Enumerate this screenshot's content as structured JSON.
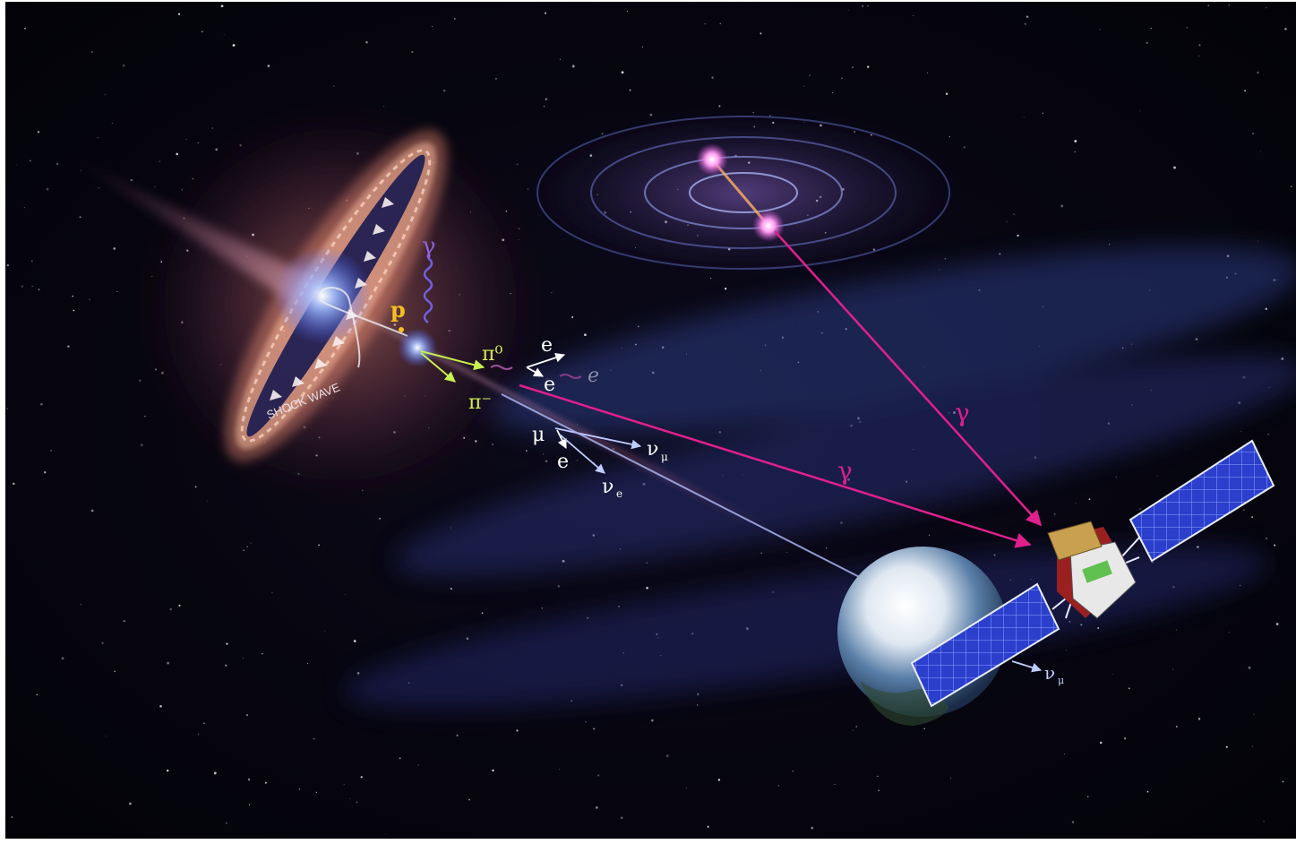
{
  "labels": {
    "gamma_source": "γ",
    "proton": "p",
    "pi0": "π⁰",
    "pi_minus": "π⁻",
    "e_upper": "e",
    "e_lower": "e",
    "e_far": "e",
    "muon": "μ",
    "e_muon": "e",
    "nu_mu": "ν",
    "nu_mu_sub": "μ",
    "nu_e": "ν",
    "nu_e_sub": "e",
    "gamma_path_1": "γ",
    "gamma_path_2": "γ",
    "nu_earth": "ν",
    "nu_earth_sub": "μ",
    "shock_wave": "SHOCK WAVE"
  },
  "colors": {
    "space": "#05050c",
    "gamma_arrow": "#e0208c",
    "neutrino_arrow": "#b8c4ff",
    "proton_label": "#f4c020",
    "gamma_label": "#c04aa0",
    "pion_label": "#d6f05a",
    "particle_label": "#ffffff",
    "panel_blue": "#2a3ec8",
    "disk_pink": "#f0a080",
    "jet_blue": "#6090ff"
  }
}
